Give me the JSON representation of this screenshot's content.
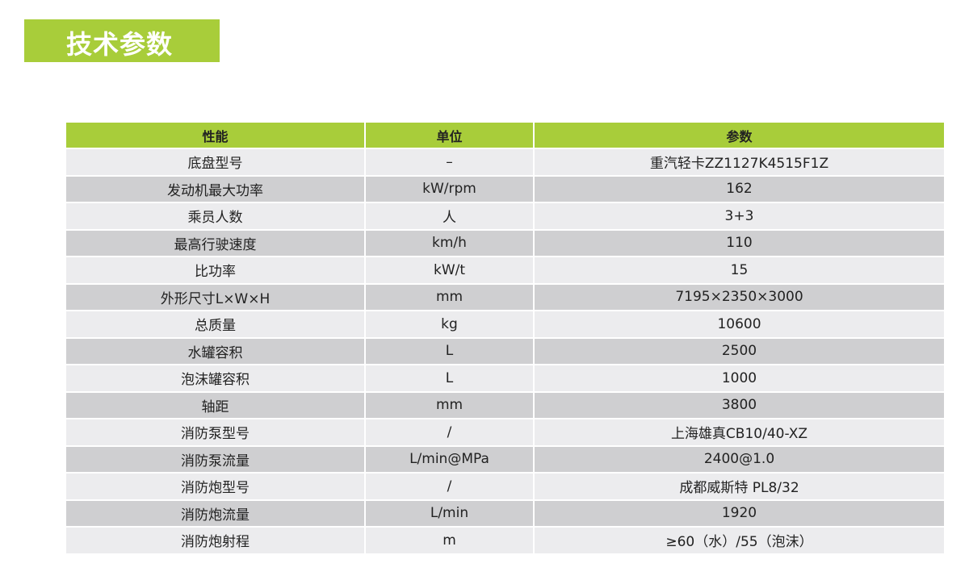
{
  "colors": {
    "accent": "#a8cd3a",
    "row_light": "#ececee",
    "row_dark": "#cfcfd1"
  },
  "title": "技术参数",
  "table": {
    "headers": [
      "性能",
      "单位",
      "参数"
    ],
    "rows": [
      [
        "底盘型号",
        "–",
        "重汽轻卡ZZ1127K4515F1Z"
      ],
      [
        "发动机最大功率",
        "kW/rpm",
        "162"
      ],
      [
        "乘员人数",
        "人",
        "3+3"
      ],
      [
        "最高行驶速度",
        "km/h",
        "110"
      ],
      [
        "比功率",
        "kW/t",
        "15"
      ],
      [
        "外形尺寸L×W×H",
        "mm",
        "7195×2350×3000"
      ],
      [
        "总质量",
        "kg",
        "10600"
      ],
      [
        "水罐容积",
        "L",
        "2500"
      ],
      [
        "泡沫罐容积",
        "L",
        "1000"
      ],
      [
        "轴距",
        "mm",
        "3800"
      ],
      [
        "消防泵型号",
        "/",
        "上海雄真CB10/40-XZ"
      ],
      [
        "消防泵流量",
        "L/min@MPa",
        "2400@1.0"
      ],
      [
        "消防炮型号",
        "/",
        "成都威斯特 PL8/32"
      ],
      [
        "消防炮流量",
        "L/min",
        "1920"
      ],
      [
        "消防炮射程",
        "m",
        "≥60（水）/55（泡沫）"
      ]
    ]
  }
}
